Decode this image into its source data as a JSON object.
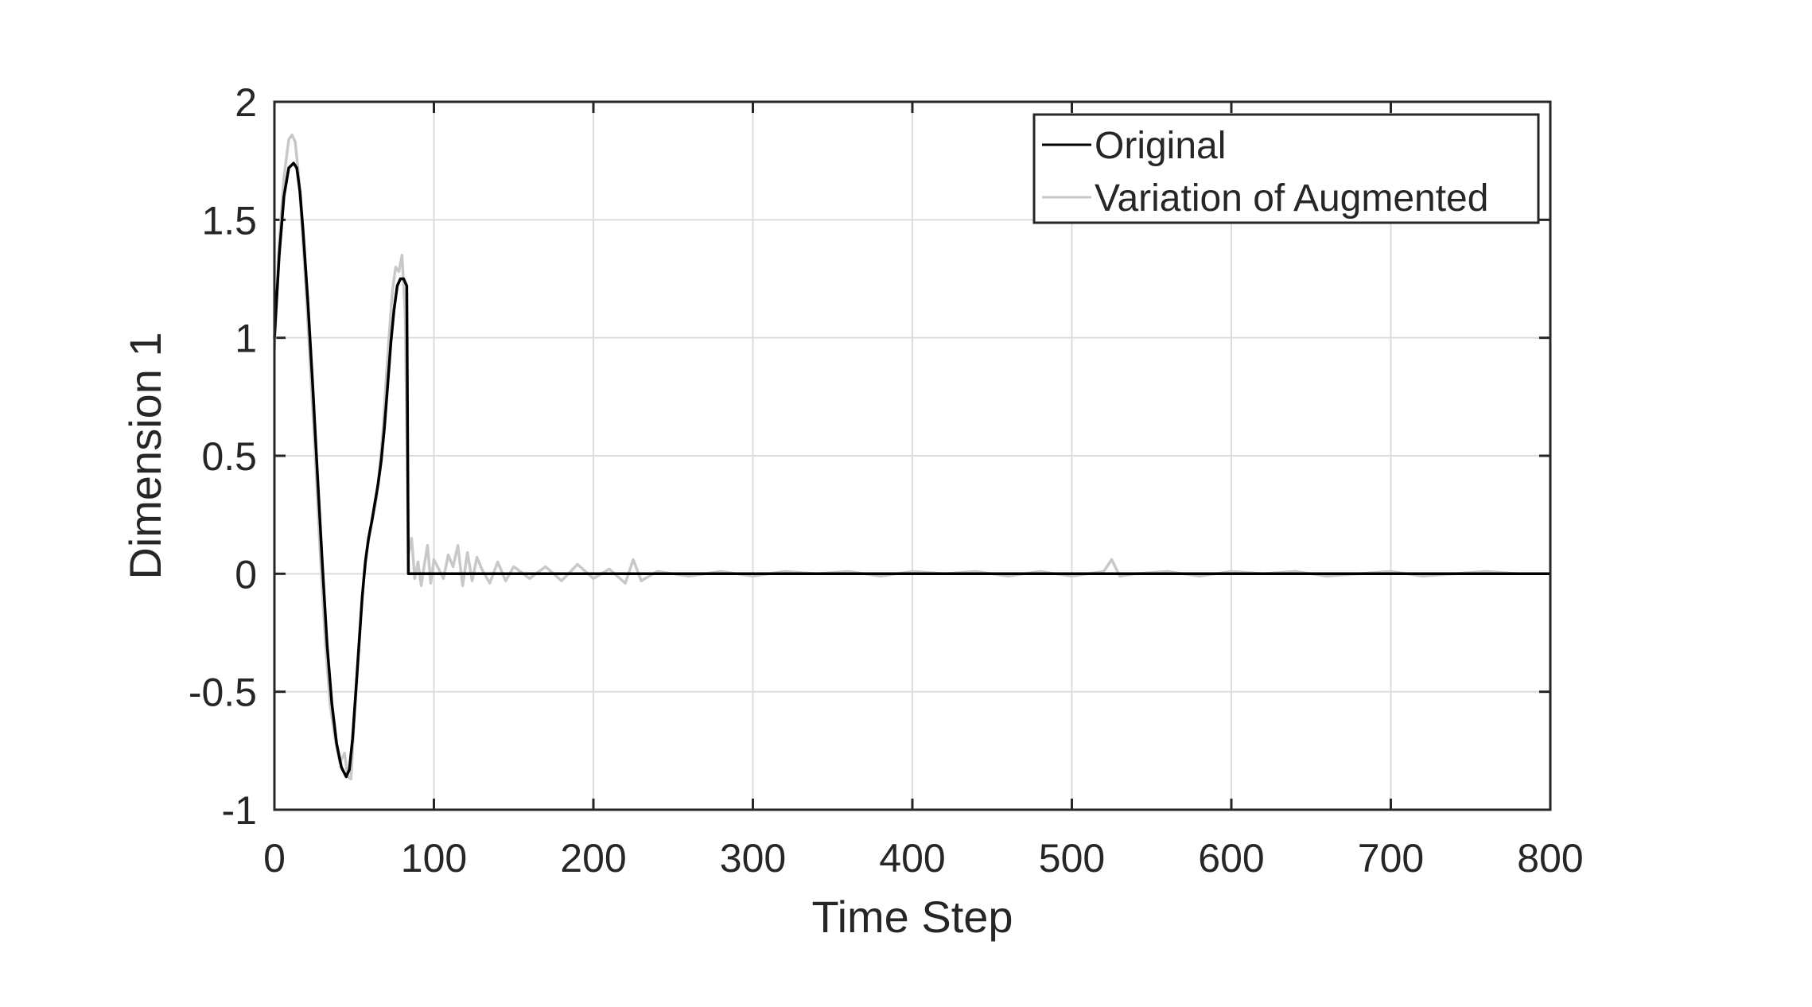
{
  "chart_data": {
    "type": "line",
    "title": "",
    "xlabel": "Time Step",
    "ylabel": "Dimension 1",
    "xlim": [
      0,
      800
    ],
    "ylim": [
      -1,
      2
    ],
    "xticks": [
      0,
      100,
      200,
      300,
      400,
      500,
      600,
      700,
      800
    ],
    "yticks": [
      -1,
      -0.5,
      0,
      0.5,
      1,
      1.5,
      2
    ],
    "xtick_labels": [
      "0",
      "100",
      "200",
      "300",
      "400",
      "500",
      "600",
      "700",
      "800"
    ],
    "ytick_labels": [
      "-1",
      "-0.5",
      "0",
      "0.5",
      "1",
      "1.5",
      "2"
    ],
    "grid": true,
    "legend_position": "top-right",
    "series": [
      {
        "name": "Original",
        "color": "#000000",
        "x": [
          0,
          3,
          6,
          9,
          12,
          14,
          16,
          18,
          21,
          24,
          27,
          30,
          33,
          36,
          39,
          42,
          45,
          47,
          49,
          51,
          53,
          55,
          57,
          59,
          61,
          63,
          65,
          67,
          69,
          71,
          73,
          75,
          77,
          79,
          81,
          83,
          84,
          100,
          200,
          300,
          400,
          500,
          600,
          700,
          800
        ],
        "values": [
          1.0,
          1.35,
          1.6,
          1.72,
          1.74,
          1.72,
          1.62,
          1.45,
          1.15,
          0.8,
          0.42,
          0.05,
          -0.3,
          -0.55,
          -0.72,
          -0.82,
          -0.86,
          -0.83,
          -0.7,
          -0.5,
          -0.3,
          -0.1,
          0.05,
          0.15,
          0.22,
          0.3,
          0.38,
          0.48,
          0.62,
          0.8,
          0.98,
          1.12,
          1.22,
          1.25,
          1.25,
          1.22,
          0.0,
          0.0,
          0.0,
          0.0,
          0.0,
          0.0,
          0.0,
          0.0,
          0.0
        ]
      },
      {
        "name": "Variation of Augmented",
        "color": "#c8c8c8",
        "x": [
          0,
          3,
          6,
          9,
          11,
          13,
          15,
          17,
          20,
          23,
          26,
          29,
          32,
          35,
          38,
          41,
          44,
          46,
          48,
          50,
          52,
          54,
          56,
          58,
          60,
          62,
          64,
          66,
          68,
          70,
          72,
          74,
          76,
          78,
          80,
          82,
          84,
          86,
          88,
          90,
          92,
          94,
          96,
          98,
          100,
          103,
          106,
          109,
          112,
          115,
          118,
          121,
          124,
          127,
          130,
          135,
          140,
          145,
          150,
          160,
          170,
          180,
          190,
          200,
          210,
          220,
          225,
          230,
          240,
          260,
          280,
          300,
          320,
          340,
          360,
          380,
          400,
          420,
          440,
          460,
          480,
          500,
          520,
          525,
          530,
          540,
          560,
          580,
          600,
          620,
          640,
          660,
          680,
          700,
          720,
          740,
          760,
          780,
          800
        ],
        "values": [
          0.95,
          1.4,
          1.68,
          1.84,
          1.86,
          1.83,
          1.7,
          1.5,
          1.18,
          0.82,
          0.45,
          0.05,
          -0.3,
          -0.56,
          -0.7,
          -0.8,
          -0.76,
          -0.86,
          -0.87,
          -0.62,
          -0.42,
          -0.2,
          -0.02,
          0.1,
          0.18,
          0.25,
          0.32,
          0.45,
          0.6,
          0.82,
          1.02,
          1.2,
          1.3,
          1.28,
          1.35,
          1.1,
          0.08,
          0.15,
          -0.02,
          0.05,
          -0.05,
          0.04,
          0.12,
          -0.04,
          0.06,
          0.02,
          -0.02,
          0.08,
          0.03,
          0.12,
          -0.05,
          0.09,
          -0.03,
          0.07,
          0.02,
          -0.04,
          0.05,
          -0.03,
          0.03,
          -0.02,
          0.03,
          -0.03,
          0.04,
          -0.02,
          0.02,
          -0.04,
          0.06,
          -0.03,
          0.01,
          -0.01,
          0.01,
          -0.01,
          0.01,
          0.0,
          0.01,
          -0.01,
          0.01,
          0.0,
          0.01,
          -0.01,
          0.01,
          -0.01,
          0.01,
          0.06,
          -0.01,
          0.0,
          0.01,
          -0.01,
          0.01,
          0.0,
          0.01,
          -0.01,
          0.0,
          0.01,
          -0.01,
          0.0,
          0.01,
          0.0,
          0.0
        ]
      }
    ]
  }
}
